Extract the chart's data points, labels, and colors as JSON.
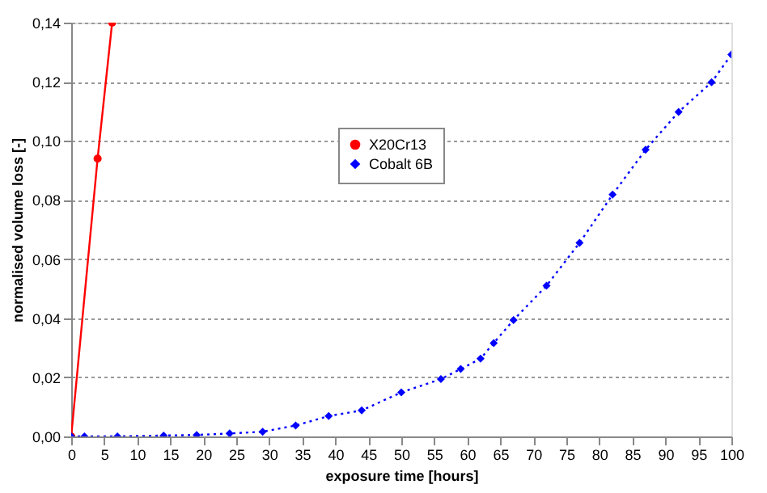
{
  "chart_data": {
    "type": "line",
    "xlabel": "exposure time [hours]",
    "ylabel": "normalised volume loss [-]",
    "xlim": [
      0,
      100
    ],
    "xticks": [
      0,
      5,
      10,
      15,
      20,
      25,
      30,
      35,
      40,
      45,
      50,
      55,
      60,
      65,
      70,
      75,
      80,
      85,
      90,
      95,
      100
    ],
    "ylim": [
      0,
      0.14
    ],
    "yticks": [
      {
        "value": 0,
        "label": "0,00"
      },
      {
        "value": 0.02,
        "label": "0,02"
      },
      {
        "value": 0.04,
        "label": "0,04"
      },
      {
        "value": 0.06,
        "label": "0,06"
      },
      {
        "value": 0.08,
        "label": "0,08"
      },
      {
        "value": 0.1,
        "label": "0,10"
      },
      {
        "value": 0.12,
        "label": "0,12"
      },
      {
        "value": 0.14,
        "label": "0,14"
      }
    ],
    "grid": "y",
    "legend": "top",
    "series": [
      {
        "name": "X20Cr13",
        "color": "#ff0000",
        "marker": "circle",
        "line_style": "solid",
        "x": [
          0,
          4,
          6.2
        ],
        "values": [
          0,
          0.094,
          0.14
        ]
      },
      {
        "name": "Cobalt 6B",
        "color": "#0000ff",
        "marker": "diamond",
        "line_style": "dotted",
        "x": [
          0,
          2,
          7,
          14,
          19,
          24,
          29,
          34,
          39,
          44,
          50,
          56,
          59,
          62,
          64,
          67,
          72,
          77,
          82,
          87,
          92,
          97,
          100
        ],
        "values": [
          0,
          0,
          0,
          0.0003,
          0.0005,
          0.001,
          0.0016,
          0.0037,
          0.0069,
          0.0088,
          0.0149,
          0.0194,
          0.0228,
          0.0263,
          0.0316,
          0.0394,
          0.051,
          0.0655,
          0.0818,
          0.097,
          0.1098,
          0.1198,
          0.1292
        ]
      }
    ]
  }
}
